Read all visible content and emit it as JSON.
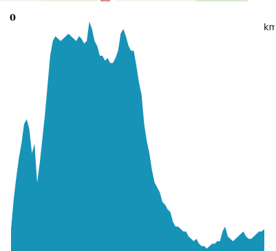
{
  "chart_data": {
    "type": "area",
    "color": "#1893b8",
    "y_tick_label": "0",
    "unit_label": "km",
    "ylim": [
      0,
      100
    ],
    "x": [
      0,
      1,
      2,
      3,
      4,
      5,
      6,
      7,
      8,
      9,
      10,
      11,
      12,
      13,
      14,
      15,
      16,
      17,
      18,
      19,
      20,
      21,
      22,
      23,
      24,
      25,
      26,
      27,
      28,
      29,
      30,
      31,
      32,
      33,
      34,
      35,
      36,
      37,
      38,
      39,
      40,
      41,
      42,
      43,
      44,
      45,
      46,
      47,
      48,
      49,
      50,
      51,
      52,
      53,
      54,
      55,
      56,
      57,
      58,
      59,
      60,
      61,
      62,
      63,
      64,
      65,
      66,
      67,
      68,
      69,
      70,
      71,
      72,
      73,
      74,
      75,
      76,
      77,
      78,
      79,
      80,
      81,
      82,
      83,
      84,
      85,
      86,
      87,
      88,
      89,
      90,
      91,
      92,
      93,
      94,
      95,
      96,
      97
    ],
    "values": [
      9,
      21,
      30,
      38,
      44,
      52,
      54,
      50,
      40,
      44,
      28,
      36,
      46,
      56,
      68,
      80,
      86,
      88,
      87,
      86,
      87,
      88,
      89,
      88,
      87,
      86,
      88,
      87,
      85,
      86,
      94,
      91,
      86,
      84,
      80,
      80,
      78,
      79,
      77,
      77,
      79,
      82,
      89,
      91,
      88,
      84,
      82,
      82,
      76,
      69,
      64,
      52,
      45,
      40,
      33,
      28,
      26,
      24,
      20,
      19,
      17,
      16,
      12,
      10,
      10,
      9,
      8,
      8,
      6,
      5,
      4,
      5,
      3,
      2,
      2,
      1,
      2,
      3,
      3,
      4,
      4,
      8,
      10,
      6,
      5,
      4,
      5,
      6,
      7,
      8,
      6,
      5,
      5,
      6,
      7,
      8,
      8,
      9
    ]
  },
  "top_strip": [
    {
      "color": "#f2f7ee",
      "from": 0,
      "to": 60
    },
    {
      "color": "#e8f2e1",
      "from": 60,
      "to": 142
    },
    {
      "color": "#d98a8a",
      "from": 146,
      "to": 160
    },
    {
      "color": "#eef6e8",
      "from": 168,
      "to": 285
    },
    {
      "color": "#d6e8c9",
      "from": 285,
      "to": 360
    }
  ]
}
